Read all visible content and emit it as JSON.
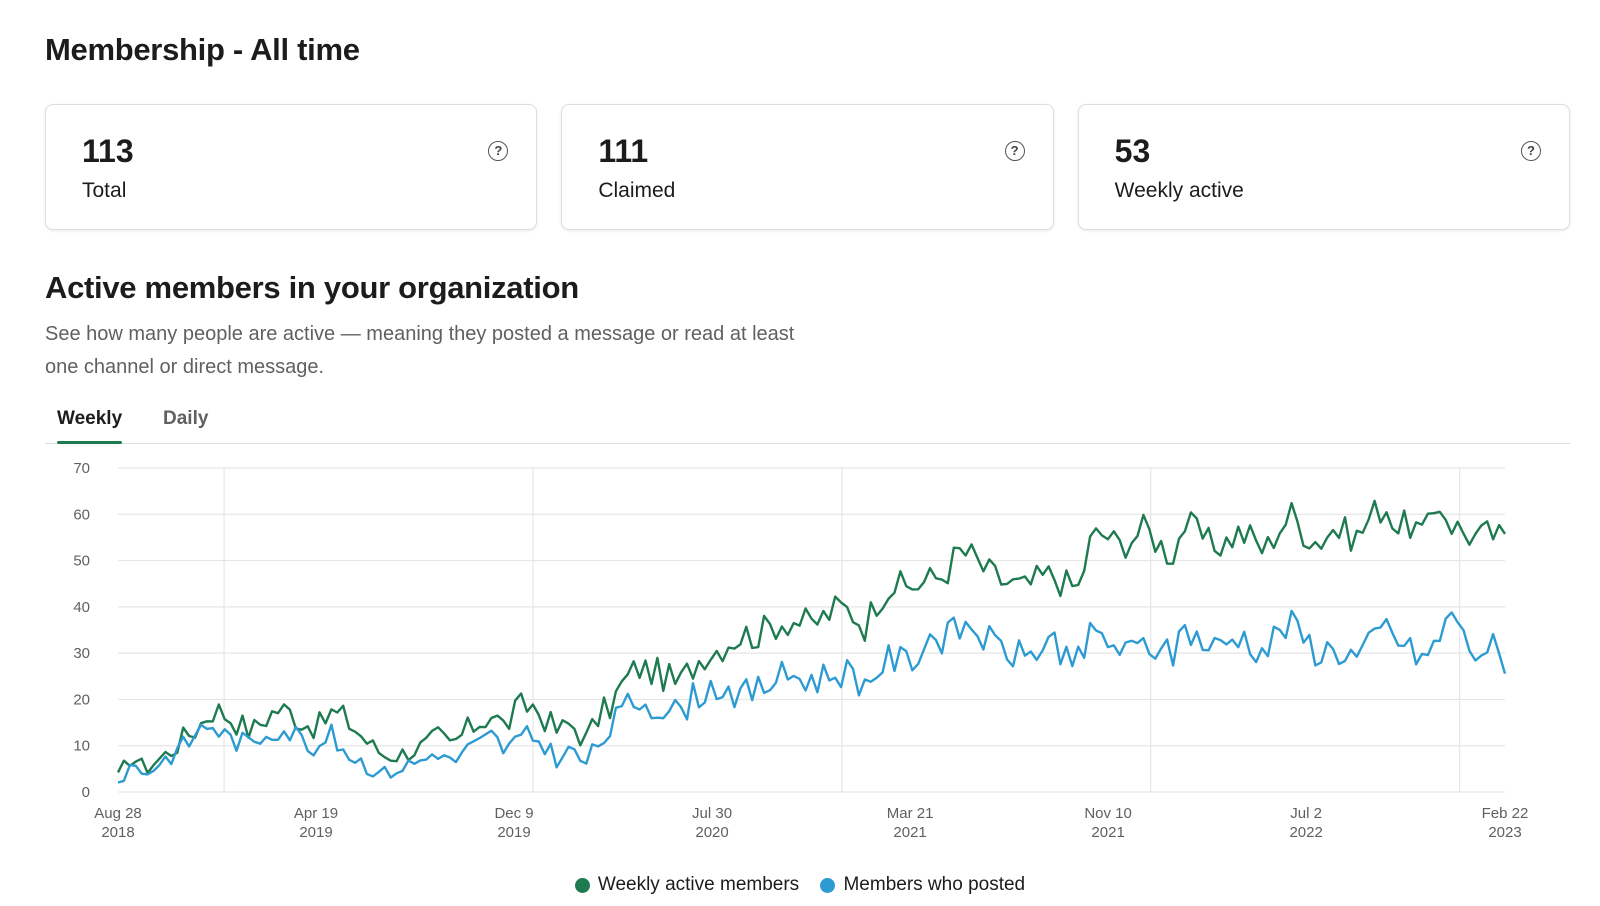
{
  "page": {
    "title": "Membership - All time"
  },
  "stats": [
    {
      "value": "113",
      "label": "Total"
    },
    {
      "value": "111",
      "label": "Claimed"
    },
    {
      "value": "53",
      "label": "Weekly active"
    }
  ],
  "section": {
    "title": "Active members in your organization",
    "description": "See how many people are active — meaning they posted a message or read at least one channel or direct message."
  },
  "tabs": [
    {
      "label": "Weekly",
      "active": true
    },
    {
      "label": "Daily",
      "active": false
    }
  ],
  "colors": {
    "weekly_active": "#1e7a4f",
    "posted": "#2d9bd2",
    "grid": "#e6e6e6",
    "accent": "#1e7a4f"
  },
  "chart_data": {
    "type": "line",
    "title": "",
    "xlabel": "",
    "ylabel": "",
    "ylim": [
      0,
      70
    ],
    "yticks": [
      0,
      10,
      20,
      30,
      40,
      50,
      60,
      70
    ],
    "xlim": [
      "2018-08-28",
      "2023-02-22"
    ],
    "xtick_labels": [
      {
        "date": "2018-08-28",
        "month": "Aug 28",
        "year": "2018"
      },
      {
        "date": "2019-04-19",
        "month": "Apr 19",
        "year": "2019"
      },
      {
        "date": "2019-12-09",
        "month": "Dec 9",
        "year": "2019"
      },
      {
        "date": "2020-07-30",
        "month": "Jul 30",
        "year": "2020"
      },
      {
        "date": "2021-03-21",
        "month": "Mar 21",
        "year": "2021"
      },
      {
        "date": "2021-11-10",
        "month": "Nov 10",
        "year": "2021"
      },
      {
        "date": "2022-07-02",
        "month": "Jul 2",
        "year": "2022"
      },
      {
        "date": "2023-02-22",
        "month": "Feb 22",
        "year": "2023"
      }
    ],
    "x_interval_days": 14,
    "series": [
      {
        "name": "Weekly active members",
        "values": [
          3,
          8,
          5,
          7,
          9,
          12,
          14,
          18,
          17,
          15,
          13,
          16,
          18,
          17,
          15,
          14,
          17,
          16,
          13,
          10,
          8,
          8,
          9,
          10,
          12,
          10,
          13,
          15,
          17,
          14,
          18,
          19,
          16,
          13,
          15,
          11,
          16,
          19,
          24,
          27,
          26,
          25,
          23,
          27,
          30,
          31,
          33,
          34,
          34,
          36,
          37,
          37,
          36,
          38,
          40,
          39,
          36,
          42,
          45,
          44,
          45,
          46,
          47,
          52,
          51,
          48,
          46,
          45,
          44,
          46,
          47,
          45,
          44,
          55,
          56,
          53,
          55,
          57,
          54,
          51,
          58,
          56,
          53,
          54,
          56,
          55,
          52,
          57,
          60,
          56,
          54,
          57,
          56,
          55,
          60,
          62,
          57,
          58,
          55,
          63,
          58,
          56,
          55,
          56,
          54
        ]
      },
      {
        "name": "Members who posted",
        "values": [
          2,
          6,
          4,
          6,
          8,
          10,
          13,
          15,
          12,
          11,
          10,
          13,
          14,
          13,
          11,
          10,
          12,
          9,
          7,
          5,
          4,
          5,
          6,
          7,
          9,
          6,
          9,
          10,
          12,
          9,
          11,
          12,
          10,
          7,
          9,
          6,
          10,
          14,
          18,
          20,
          19,
          18,
          17,
          20,
          22,
          23,
          22,
          21,
          22,
          24,
          25,
          25,
          24,
          25,
          26,
          26,
          23,
          27,
          29,
          28,
          30,
          34,
          33,
          35,
          36,
          33,
          31,
          30,
          29,
          31,
          33,
          30,
          28,
          34,
          33,
          31,
          30,
          32,
          31,
          29,
          36,
          33,
          31,
          32,
          34,
          32,
          30,
          35,
          36,
          33,
          30,
          31,
          30,
          29,
          32,
          36,
          33,
          30,
          29,
          32,
          40,
          32,
          30,
          32,
          25
        ]
      }
    ]
  }
}
